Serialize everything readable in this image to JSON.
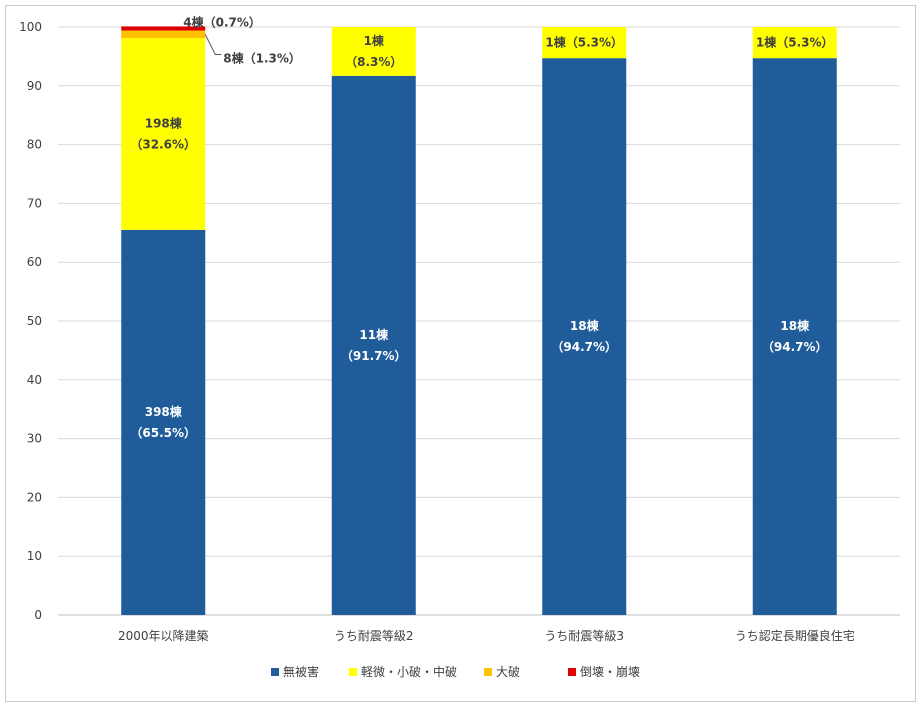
{
  "chart_data": {
    "type": "bar",
    "stacked": true,
    "categories": [
      "2000年以降建築",
      "うち耐震等級2",
      "うち耐震等級3",
      "うち認定長期優良住宅"
    ],
    "ylim": [
      0,
      100
    ],
    "yticks": [
      0,
      10,
      20,
      30,
      40,
      50,
      60,
      70,
      80,
      90,
      100
    ],
    "grid": true,
    "legend_position": "bottom",
    "series": [
      {
        "name": "無被害",
        "color": "#1f5c99",
        "values": [
          65.5,
          91.7,
          94.7,
          94.7
        ]
      },
      {
        "name": "軽微・小破・中破",
        "color": "#ffff00",
        "values": [
          32.6,
          8.3,
          5.3,
          5.3
        ]
      },
      {
        "name": "大破",
        "color": "#ffc000",
        "values": [
          1.3,
          0,
          0,
          0
        ]
      },
      {
        "name": "倒壊・崩壊",
        "color": "#e00000",
        "values": [
          0.7,
          0,
          0,
          0
        ]
      }
    ],
    "data_labels": [
      {
        "category": 0,
        "series": 0,
        "lines": [
          "398棟",
          "（65.5%）"
        ]
      },
      {
        "category": 0,
        "series": 1,
        "lines": [
          "198棟",
          "（32.6%）"
        ]
      },
      {
        "category": 0,
        "series": 2,
        "lines": [
          "8棟（1.3%）"
        ]
      },
      {
        "category": 0,
        "series": 3,
        "lines": [
          "4棟（0.7%）"
        ]
      },
      {
        "category": 1,
        "series": 0,
        "lines": [
          "11棟",
          "（91.7%）"
        ]
      },
      {
        "category": 1,
        "series": 1,
        "lines": [
          "1棟",
          "（8.3%）"
        ]
      },
      {
        "category": 2,
        "series": 0,
        "lines": [
          "18棟",
          "（94.7%）"
        ]
      },
      {
        "category": 2,
        "series": 1,
        "lines": [
          "1棟（5.3%）"
        ]
      },
      {
        "category": 3,
        "series": 0,
        "lines": [
          "18棟",
          "（94.7%）"
        ]
      },
      {
        "category": 3,
        "series": 1,
        "lines": [
          "1棟（5.3%）"
        ]
      }
    ]
  }
}
